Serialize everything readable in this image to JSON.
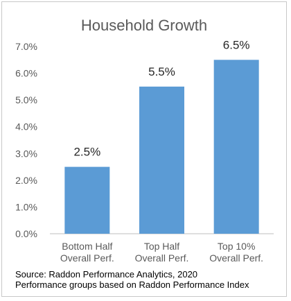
{
  "chart_data": {
    "type": "bar",
    "title": "Household Growth",
    "categories": [
      [
        "Bottom Half",
        "Overall Perf."
      ],
      [
        "Top Half",
        "Overall Perf."
      ],
      [
        "Top 10%",
        "Overall Perf."
      ]
    ],
    "values": [
      2.5,
      5.5,
      6.5
    ],
    "data_labels": [
      "2.5%",
      "5.5%",
      "6.5%"
    ],
    "ylim": [
      0,
      7
    ],
    "y_ticks": [
      "0.0%",
      "1.0%",
      "2.0%",
      "3.0%",
      "4.0%",
      "5.0%",
      "6.0%",
      "7.0%"
    ],
    "grid": false,
    "bar_color": "#5b9bd5",
    "xlabel": "",
    "ylabel": ""
  },
  "footer": {
    "source": "Source: Raddon Performance Analytics, 2020",
    "note": "Performance groups based on Raddon Performance Index"
  }
}
